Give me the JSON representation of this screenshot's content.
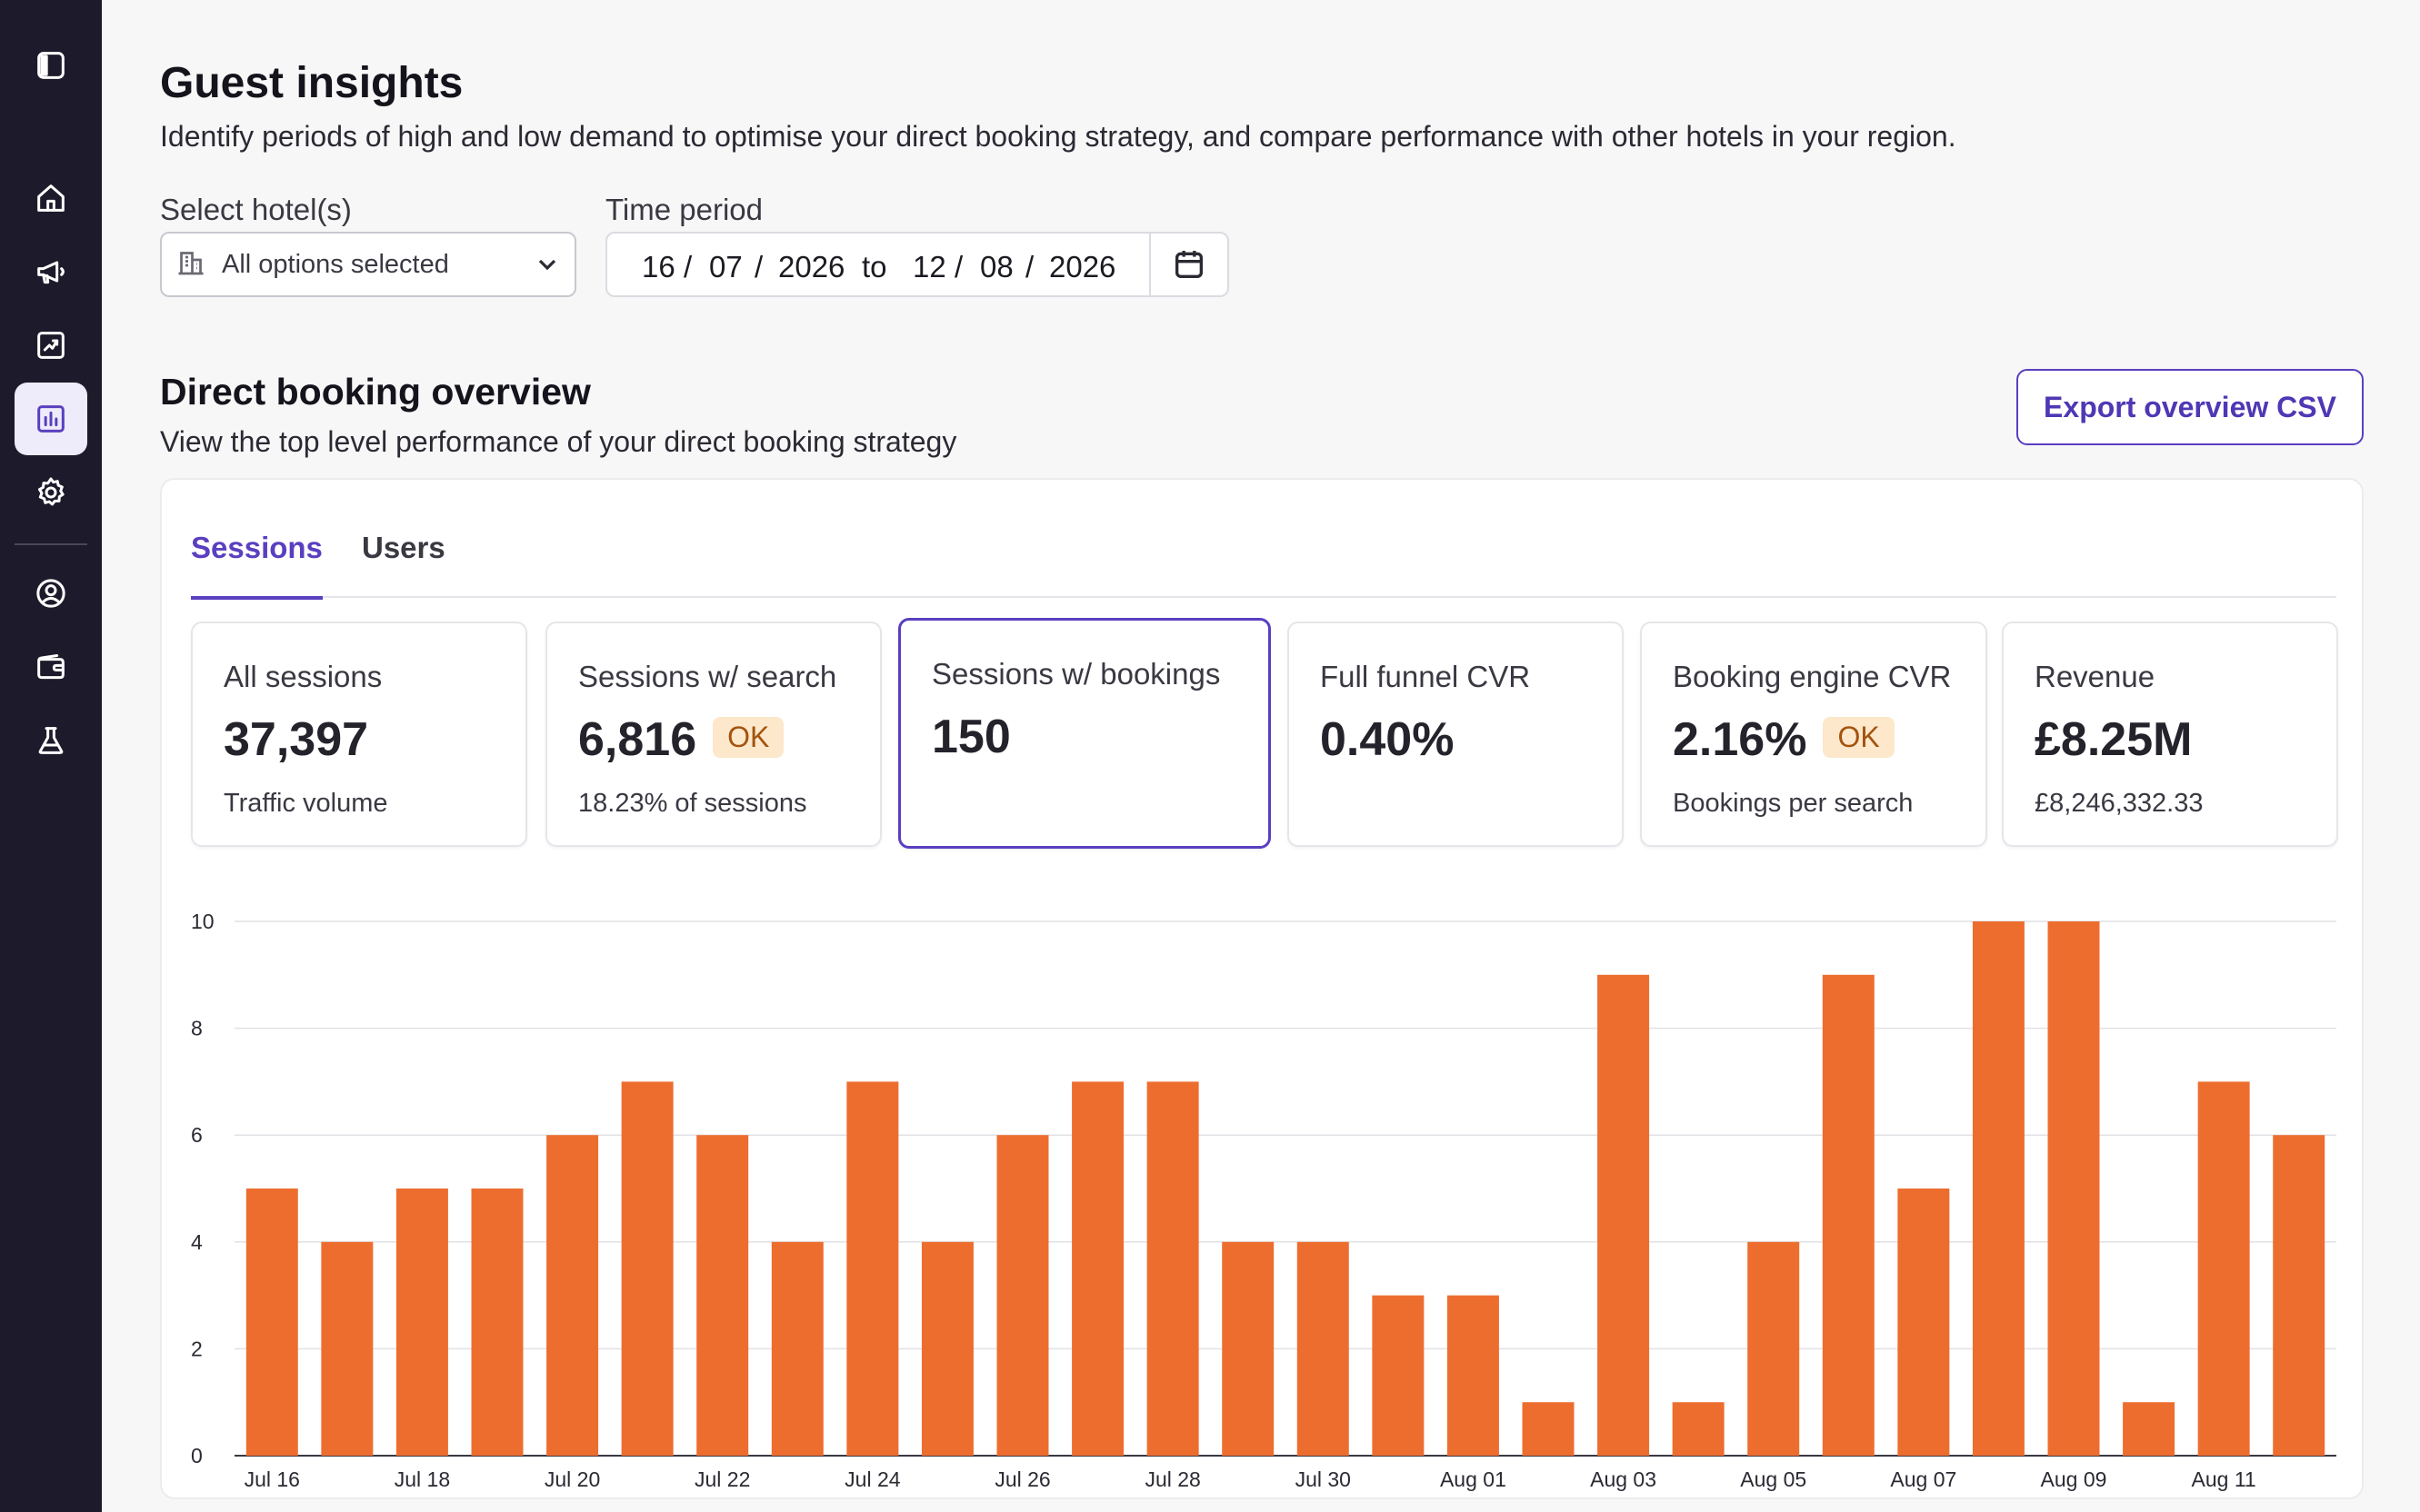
{
  "sidebar": {
    "items": [
      {
        "name": "toggle-sidebar-icon"
      },
      {
        "name": "home-icon"
      },
      {
        "name": "megaphone-icon"
      },
      {
        "name": "trend-chart-icon"
      },
      {
        "name": "bar-chart-icon",
        "active": true
      },
      {
        "name": "gear-icon"
      },
      {
        "name": "user-circle-icon"
      },
      {
        "name": "wallet-icon"
      },
      {
        "name": "flask-icon"
      }
    ]
  },
  "page": {
    "title": "Guest insights",
    "subtitle": "Identify periods of high and low demand to optimise your direct booking strategy, and compare performance with other hotels in your region."
  },
  "filters": {
    "hotel_label": "Select hotel(s)",
    "hotel_value": "All options selected",
    "period_label": "Time period",
    "from": {
      "day": "16",
      "month": "07",
      "year": "2026"
    },
    "to_word": "to",
    "to": {
      "day": "12",
      "month": "08",
      "year": "2026"
    },
    "sep": "/"
  },
  "overview": {
    "title": "Direct booking overview",
    "subtitle": "View the top level performance of your direct booking strategy",
    "export_label": "Export overview CSV",
    "tabs": [
      {
        "label": "Sessions",
        "active": true
      },
      {
        "label": "Users",
        "active": false
      }
    ],
    "metrics": [
      {
        "label": "All sessions",
        "value": "37,397",
        "badge": "",
        "sub": "Traffic volume"
      },
      {
        "label": "Sessions w/ search",
        "value": "6,816",
        "badge": "OK",
        "sub": "18.23% of sessions"
      },
      {
        "label": "Sessions w/ bookings",
        "value": "150",
        "badge": "",
        "sub": "",
        "selected": true
      },
      {
        "label": "Full funnel CVR",
        "value": "0.40%",
        "badge": "",
        "sub": ""
      },
      {
        "label": "Booking engine CVR",
        "value": "2.16%",
        "badge": "OK",
        "sub": "Bookings per search"
      },
      {
        "label": "Revenue",
        "value": "£8.25M",
        "badge": "",
        "sub": "£8,246,332.33"
      }
    ]
  },
  "colors": {
    "accent": "#5a3fc0",
    "bar": "#ed6d2f",
    "badge_bg": "#fde8cc",
    "badge_text": "#a3540f",
    "sidebar_bg": "#1d1b2b"
  },
  "chart_data": {
    "type": "bar",
    "categories": [
      "Jul 16",
      "Jul 17",
      "Jul 18",
      "Jul 19",
      "Jul 20",
      "Jul 21",
      "Jul 22",
      "Jul 23",
      "Jul 24",
      "Jul 25",
      "Jul 26",
      "Jul 27",
      "Jul 28",
      "Jul 29",
      "Jul 30",
      "Jul 31",
      "Aug 01",
      "Aug 02",
      "Aug 03",
      "Aug 04",
      "Aug 05",
      "Aug 06",
      "Aug 07",
      "Aug 08",
      "Aug 09",
      "Aug 10",
      "Aug 11",
      "Aug 12"
    ],
    "tick_labels": [
      "Jul 16",
      "Jul 18",
      "Jul 20",
      "Jul 22",
      "Jul 24",
      "Jul 26",
      "Jul 28",
      "Jul 30",
      "Aug 01",
      "Aug 03",
      "Aug 05",
      "Aug 07",
      "Aug 09",
      "Aug 11"
    ],
    "values": [
      5,
      4,
      5,
      5,
      6,
      7,
      6,
      4,
      7,
      4,
      6,
      7,
      7,
      4,
      4,
      3,
      3,
      1,
      9,
      1,
      4,
      9,
      5,
      10,
      10,
      1,
      7,
      6
    ],
    "ylim": [
      0,
      10
    ],
    "yticks": [
      0,
      2,
      4,
      6,
      8,
      10
    ],
    "grid": true,
    "title": "",
    "xlabel": "",
    "ylabel": ""
  }
}
